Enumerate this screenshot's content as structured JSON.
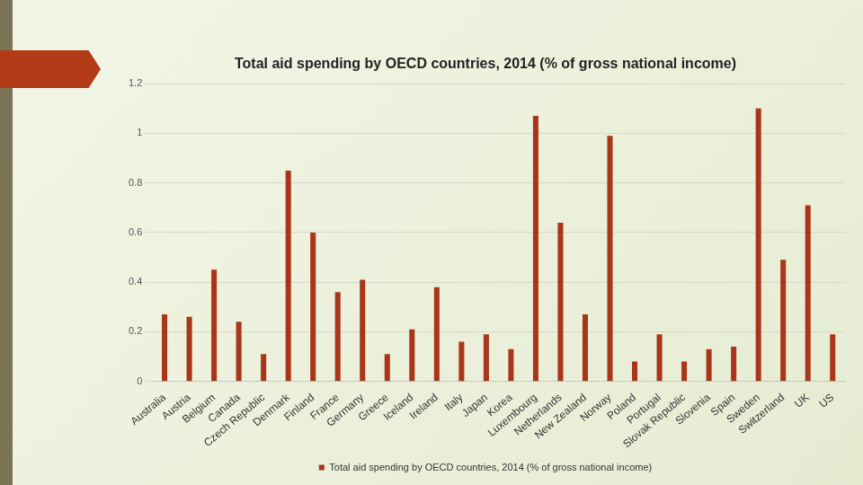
{
  "chart_data": {
    "type": "bar",
    "title": "Total aid spending by OECD countries, 2014 (% of gross national income)",
    "categories": [
      "Australia",
      "Austria",
      "Belgium",
      "Canada",
      "Czech Republic",
      "Denmark",
      "Finland",
      "France",
      "Germany",
      "Greece",
      "Iceland",
      "Ireland",
      "Italy",
      "Japan",
      "Korea",
      "Luxembourg",
      "Netherlands",
      "New Zealand",
      "Norway",
      "Poland",
      "Portugal",
      "Slovak Republic",
      "Slovenia",
      "Spain",
      "Sweden",
      "Switzerland",
      "UK",
      "US"
    ],
    "series": [
      {
        "name": "Total aid spending by OECD countries, 2014 (% of gross national income)",
        "color": "#a9361a",
        "values": [
          0.27,
          0.26,
          0.45,
          0.24,
          0.11,
          0.85,
          0.6,
          0.36,
          0.41,
          0.11,
          0.21,
          0.38,
          0.16,
          0.19,
          0.13,
          1.07,
          0.64,
          0.27,
          0.99,
          0.08,
          0.19,
          0.08,
          0.13,
          0.14,
          1.1,
          0.49,
          0.71,
          0.19
        ]
      }
    ],
    "ylim": [
      0,
      1.2
    ],
    "yticks": [
      0,
      0.2,
      0.4,
      0.6,
      0.8,
      1,
      1.2
    ],
    "grid": true,
    "legend": "bottom"
  }
}
